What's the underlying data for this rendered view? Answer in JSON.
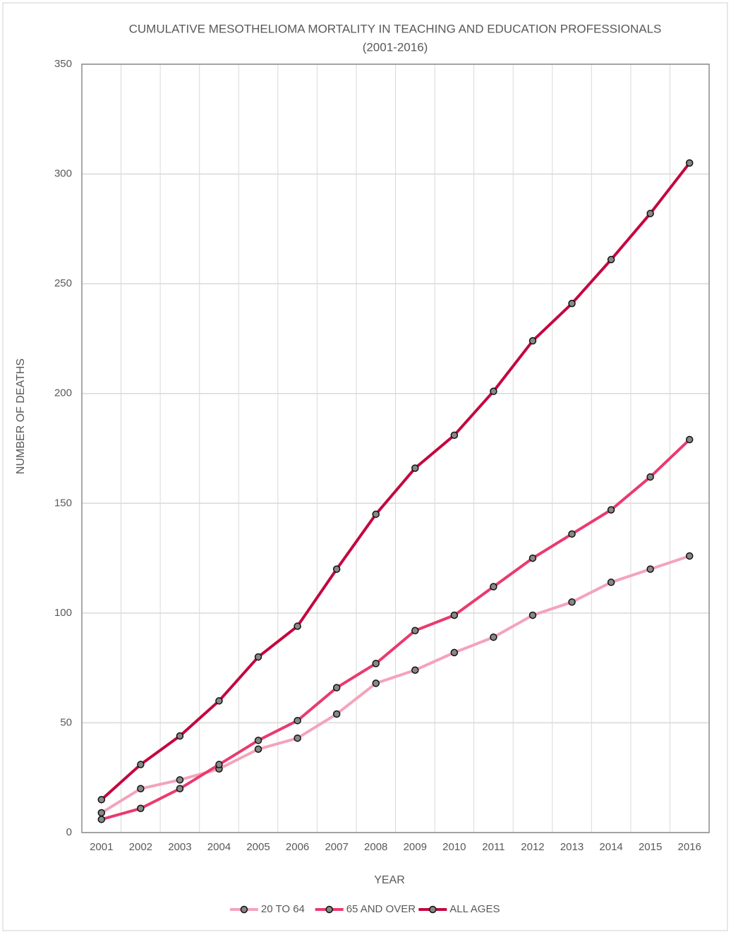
{
  "chart_data": {
    "type": "line",
    "title": "CUMULATIVE MESOTHELIOMA MORTALITY IN TEACHING AND EDUCATION PROFESSIONALS",
    "subtitle": "(2001-2016)",
    "x_label": "YEAR",
    "y_label": "NUMBER OF DEATHS",
    "categories": [
      "2001",
      "2002",
      "2003",
      "2004",
      "2005",
      "2006",
      "2007",
      "2008",
      "2009",
      "2010",
      "2011",
      "2012",
      "2013",
      "2014",
      "2015",
      "2016"
    ],
    "series": [
      {
        "name": "20 TO 64",
        "color": "#f4a3bb",
        "values": [
          9,
          20,
          24,
          29,
          38,
          43,
          54,
          68,
          74,
          82,
          89,
          99,
          105,
          114,
          120,
          126
        ]
      },
      {
        "name": "65 AND OVER",
        "color": "#ea3a6e",
        "values": [
          6,
          11,
          20,
          31,
          42,
          51,
          66,
          77,
          92,
          99,
          112,
          125,
          136,
          147,
          162,
          179
        ]
      },
      {
        "name": "ALL AGES",
        "color": "#c4073f",
        "values": [
          15,
          31,
          44,
          60,
          80,
          94,
          120,
          145,
          166,
          181,
          201,
          224,
          241,
          261,
          282,
          305
        ]
      }
    ],
    "ylim": [
      0,
      350
    ],
    "yticks": [
      0,
      50,
      100,
      150,
      200,
      250,
      300,
      350
    ],
    "grid": true,
    "legend": "bottom",
    "marker_color": "#888888"
  }
}
